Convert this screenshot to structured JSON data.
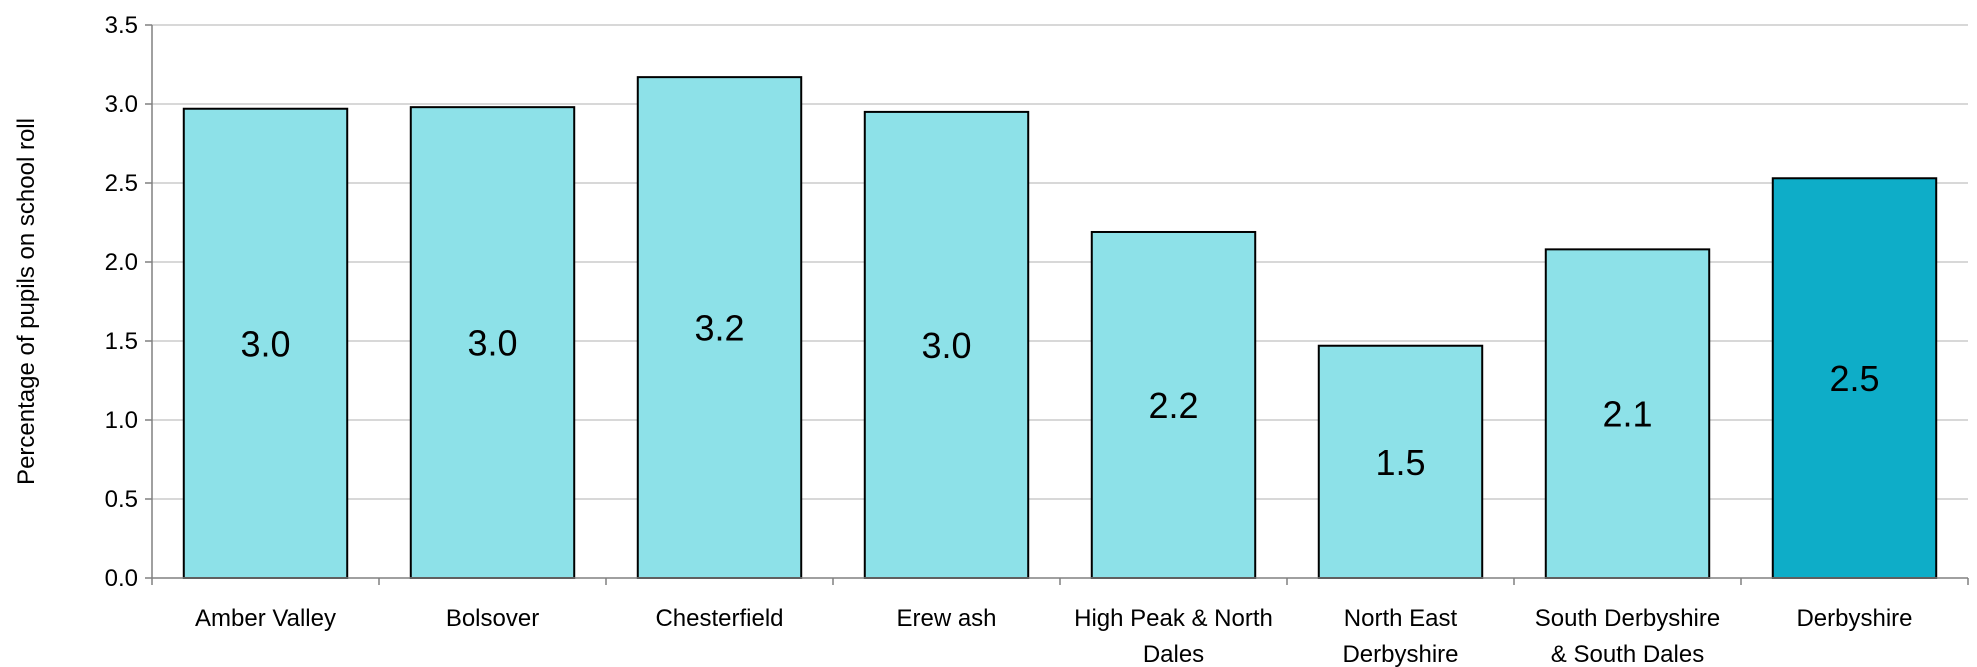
{
  "chart_data": {
    "type": "bar",
    "title": "",
    "xlabel": "",
    "ylabel": "Percentage of pupils on school roll",
    "ylim": [
      0,
      3.5
    ],
    "yticks": [
      "0.0",
      "0.5",
      "1.0",
      "1.5",
      "2.0",
      "2.5",
      "3.0",
      "3.5"
    ],
    "grid": true,
    "categories": [
      [
        "Amber Valley"
      ],
      [
        "Bolsover"
      ],
      [
        "Chesterfield"
      ],
      [
        "Erew ash"
      ],
      [
        "High Peak & North",
        "Dales"
      ],
      [
        "North East",
        "Derbyshire"
      ],
      [
        "South Derbyshire",
        "& South Dales"
      ],
      [
        "Derbyshire"
      ]
    ],
    "values": [
      2.97,
      2.98,
      3.17,
      2.95,
      2.19,
      1.47,
      2.08,
      2.53
    ],
    "data_labels": [
      "3.0",
      "3.0",
      "3.2",
      "3.0",
      "2.2",
      "1.5",
      "2.1",
      "2.5"
    ],
    "colors": {
      "bar": "#8de1e8",
      "highlight_bar": "#0eadc8",
      "bar_stroke": "#000000",
      "grid": "#b0b0b0",
      "axis": "#808080"
    },
    "highlight_index": 7
  }
}
